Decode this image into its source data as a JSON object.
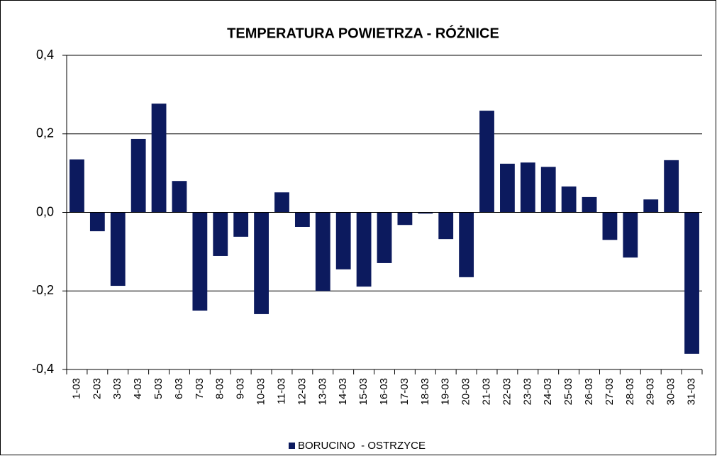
{
  "chart_data": {
    "type": "bar",
    "title": "TEMPERATURA POWIETRZA - RÓŻNICE",
    "categories": [
      "1-03",
      "2-03",
      "3-03",
      "4-03",
      "5-03",
      "6-03",
      "7-03",
      "8-03",
      "9-03",
      "10-03",
      "11-03",
      "12-03",
      "13-03",
      "14-03",
      "15-03",
      "16-03",
      "17-03",
      "18-03",
      "19-03",
      "20-03",
      "21-03",
      "22-03",
      "23-03",
      "24-03",
      "25-03",
      "26-03",
      "27-03",
      "28-03",
      "29-03",
      "30-03",
      "31-03"
    ],
    "series": [
      {
        "name": "BORUCINO  - OSTRZYCE",
        "color": "#0c1a5e",
        "values": [
          0.135,
          -0.048,
          -0.187,
          0.187,
          0.277,
          0.08,
          -0.25,
          -0.111,
          -0.062,
          -0.259,
          0.051,
          -0.037,
          -0.2,
          -0.145,
          -0.189,
          -0.129,
          -0.032,
          -0.003,
          -0.068,
          -0.165,
          0.259,
          0.124,
          0.127,
          0.116,
          0.066,
          0.039,
          -0.07,
          -0.115,
          0.033,
          0.133,
          -0.36
        ]
      }
    ],
    "ylim": [
      -0.4,
      0.4
    ],
    "yticks": [
      {
        "value": -0.4,
        "label": "-0,4"
      },
      {
        "value": -0.2,
        "label": "-0,2"
      },
      {
        "value": 0,
        "label": "0,0"
      },
      {
        "value": 0.2,
        "label": "0,2"
      },
      {
        "value": 0.4,
        "label": "0,4"
      }
    ],
    "grid": true,
    "legend": "bottom"
  }
}
